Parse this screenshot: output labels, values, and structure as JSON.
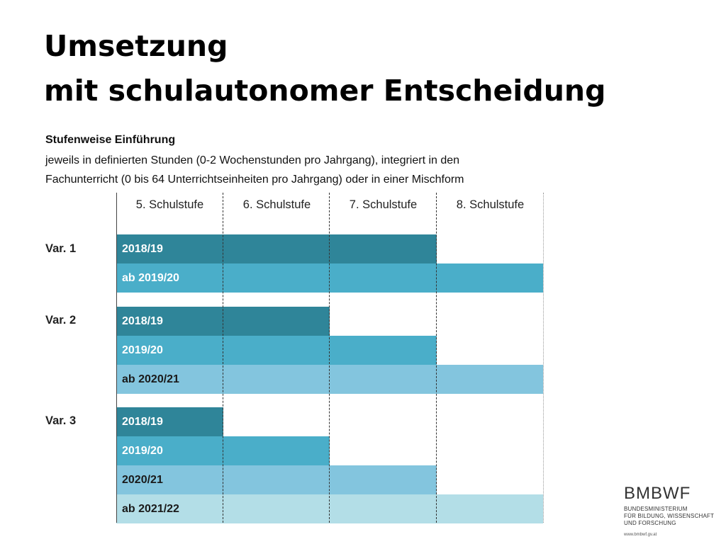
{
  "title": {
    "line1": "Umsetzung",
    "line2": "mit schulautonomer Entscheidung"
  },
  "intro": {
    "heading": "Stufenweise Einführung",
    "line1": "jeweils in definierten Stunden (0-2 Wochenstunden pro Jahrgang), integriert in den",
    "line2": "Fachunterricht (0 bis 64 Unterrichtseinheiten pro Jahrgang) oder in einer Mischform"
  },
  "columns": [
    "5. Schulstufe",
    "6. Schulstufe",
    "7. Schulstufe",
    "8. Schulstufe"
  ],
  "colors": {
    "darkest": "#2f8599",
    "medium": "#4aaec9",
    "light": "#83c5de",
    "lightest": "#b3dee7",
    "text_white": "#ffffff",
    "text_dark": "#1a1a1a"
  },
  "variants": [
    {
      "label": "Var. 1",
      "rows": [
        {
          "label": "2018/19",
          "span": 3,
          "shade": "darkest"
        },
        {
          "label": "ab 2019/20",
          "span": 4,
          "shade": "medium"
        }
      ]
    },
    {
      "label": "Var. 2",
      "rows": [
        {
          "label": "2018/19",
          "span": 2,
          "shade": "darkest"
        },
        {
          "label": "2019/20",
          "span": 3,
          "shade": "medium"
        },
        {
          "label": "ab 2020/21",
          "span": 4,
          "shade": "light"
        }
      ]
    },
    {
      "label": "Var. 3",
      "rows": [
        {
          "label": "2018/19",
          "span": 1,
          "shade": "darkest"
        },
        {
          "label": "2019/20",
          "span": 2,
          "shade": "medium"
        },
        {
          "label": "2020/21",
          "span": 3,
          "shade": "light"
        },
        {
          "label": "ab 2021/22",
          "span": 4,
          "shade": "lightest"
        }
      ]
    }
  ],
  "logo": {
    "main": "BMBWF",
    "sub1": "BUNDESMINISTERIUM",
    "sub2": "FÜR BILDUNG, WISSENSCHAFT",
    "sub3": "UND FORSCHUNG",
    "url": "www.bmbwf.gv.at"
  }
}
